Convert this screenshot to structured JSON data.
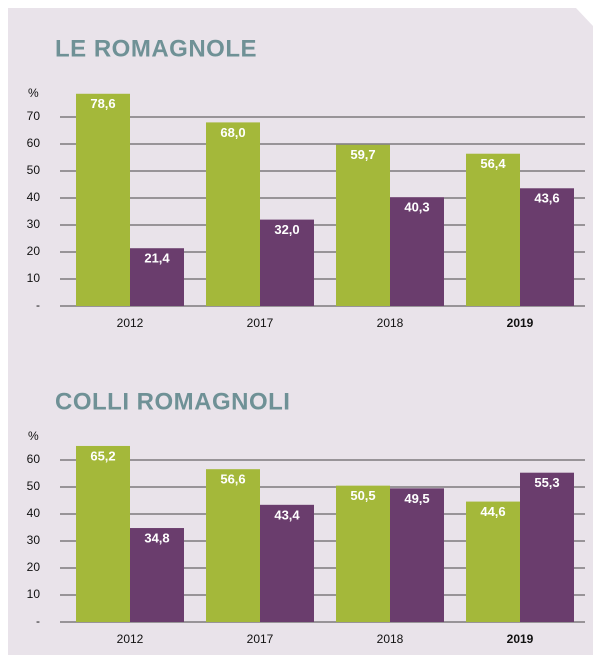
{
  "chart_data": [
    {
      "type": "bar",
      "title": "LE ROMAGNOLE",
      "ylabel": "%",
      "categories": [
        "2012",
        "2017",
        "2018",
        "2019"
      ],
      "series": [
        {
          "color": "#a4b83a",
          "values": [
            78.6,
            68.0,
            59.7,
            56.4
          ],
          "value_labels": [
            "78,6",
            "68,0",
            "59,7",
            "56,4"
          ]
        },
        {
          "color": "#6a3d6d",
          "values": [
            21.4,
            32.0,
            40.3,
            43.6
          ],
          "value_labels": [
            "21,4",
            "32,0",
            "40,3",
            "43,6"
          ]
        }
      ],
      "ylim": [
        0,
        80
      ],
      "yticks": [
        {
          "value": 0,
          "label": "-"
        },
        10,
        20,
        30,
        40,
        50,
        60,
        70
      ],
      "grid": true
    },
    {
      "type": "bar",
      "title": "COLLI ROMAGNOLI",
      "ylabel": "%",
      "categories": [
        "2012",
        "2017",
        "2018",
        "2019"
      ],
      "series": [
        {
          "color": "#a4b83a",
          "values": [
            65.2,
            56.6,
            50.5,
            44.6
          ],
          "value_labels": [
            "65,2",
            "56,6",
            "50,5",
            "44,6"
          ]
        },
        {
          "color": "#6a3d6d",
          "values": [
            34.8,
            43.4,
            49.5,
            55.3
          ],
          "value_labels": [
            "34,8",
            "43,4",
            "49,5",
            "55,3"
          ]
        }
      ],
      "ylim": [
        0,
        70
      ],
      "yticks": [
        {
          "value": 0,
          "label": "-"
        },
        10,
        20,
        30,
        40,
        50,
        60
      ],
      "grid": true
    }
  ]
}
